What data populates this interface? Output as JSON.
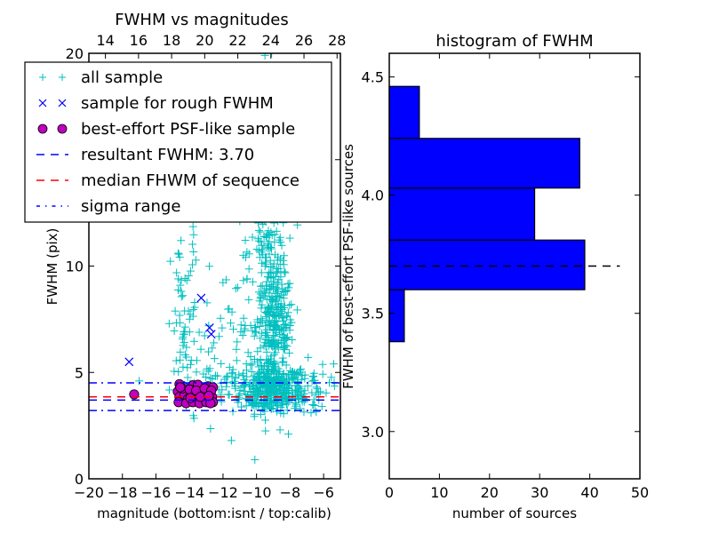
{
  "chart_data": [
    {
      "type": "scatter",
      "title": "FWHM vs magnitudes",
      "xlabel": "magnitude (bottom:isnt / top:calib)",
      "ylabel": "FWHM (pix)",
      "xlim": [
        -20,
        -5
      ],
      "ylim": [
        0,
        20
      ],
      "x_ticks": [
        -20,
        -18,
        -16,
        -14,
        -12,
        -10,
        -8,
        -6
      ],
      "x_tick_labels": [
        "−20",
        "−18",
        "−16",
        "−14",
        "−12",
        "−10",
        "−8",
        "−6"
      ],
      "y_ticks": [
        0,
        5,
        10,
        15,
        20
      ],
      "y_tick_labels": [
        "0",
        "5",
        "10",
        "15",
        "20"
      ],
      "top_xlim": [
        13.0,
        28.2
      ],
      "top_x_ticks": [
        14,
        16,
        18,
        20,
        22,
        24,
        26,
        28
      ],
      "top_x_tick_labels": [
        "14",
        "16",
        "18",
        "20",
        "22",
        "24",
        "26",
        "28"
      ],
      "legend": {
        "placement": "upper-left",
        "entries": [
          {
            "label": "all sample",
            "marker": "plus",
            "color": "#00bfbf"
          },
          {
            "label": "sample for rough FWHM",
            "marker": "x",
            "color": "#0000ff"
          },
          {
            "label": "best-effort PSF-like sample",
            "marker": "circle",
            "color": "#bf00bf"
          },
          {
            "label": "resultant FWHM: 3.70",
            "line": "dashed",
            "color": "#0000ff"
          },
          {
            "label": "median FHWM of sequence",
            "line": "dashed",
            "color": "#ff0000"
          },
          {
            "label": "sigma range",
            "line": "dashdot",
            "color": "#0000ff"
          }
        ]
      },
      "series": [
        {
          "name": "all sample",
          "marker": "plus",
          "color": "#00bfbf",
          "clusters": [
            {
              "x_mean": -9.2,
              "x_sd": 0.9,
              "y_mean": 4.2,
              "y_sd": 0.55,
              "count": 260
            },
            {
              "x_mean": -8.9,
              "x_sd": 0.55,
              "y_mean": 7.0,
              "y_sd": 1.4,
              "count": 260
            },
            {
              "x_mean": -9.3,
              "x_sd": 0.55,
              "y_mean": 10.5,
              "y_sd": 1.8,
              "count": 110
            },
            {
              "x_mean": -9.8,
              "x_sd": 0.7,
              "y_mean": 14.5,
              "y_sd": 2.5,
              "count": 60
            },
            {
              "x_mean": -7.5,
              "x_sd": 0.9,
              "y_mean": 4.3,
              "y_sd": 0.6,
              "count": 80
            },
            {
              "x_mean": -11.0,
              "x_sd": 0.9,
              "y_mean": 4.5,
              "y_sd": 0.6,
              "count": 60
            },
            {
              "x_mean": -11.0,
              "x_sd": 0.9,
              "y_mean": 7.5,
              "y_sd": 1.8,
              "count": 35
            },
            {
              "x_mean": -14.2,
              "x_sd": 0.45,
              "y_mean": 7.0,
              "y_sd": 2.2,
              "count": 55
            },
            {
              "x_mean": -13.2,
              "x_sd": 0.9,
              "y_mean": 5.5,
              "y_sd": 1.2,
              "count": 30
            },
            {
              "x_mean": -14.0,
              "x_sd": 0.5,
              "y_mean": 13.5,
              "y_sd": 2.0,
              "count": 20
            }
          ],
          "points": [
            {
              "x": -17.0,
              "y": 4.6
            },
            {
              "x": -11.5,
              "y": 1.8
            },
            {
              "x": -8.6,
              "y": 2.3
            },
            {
              "x": -8.1,
              "y": 2.1
            },
            {
              "x": -7.4,
              "y": 3.3
            },
            {
              "x": -6.1,
              "y": 3.4
            },
            {
              "x": -5.4,
              "y": 5.4
            },
            {
              "x": -9.5,
              "y": 19.9
            },
            {
              "x": -9.1,
              "y": 20.0
            },
            {
              "x": -10.1,
              "y": 0.9
            }
          ]
        },
        {
          "name": "sample for rough FWHM",
          "marker": "x",
          "color": "#0000ff",
          "points": [
            {
              "x": -17.6,
              "y": 5.5
            },
            {
              "x": -13.3,
              "y": 8.5
            },
            {
              "x": -12.8,
              "y": 7.1
            },
            {
              "x": -12.7,
              "y": 6.8
            },
            {
              "x": -14.1,
              "y": 4.4
            },
            {
              "x": -13.6,
              "y": 4.1
            }
          ]
        },
        {
          "name": "best-effort PSF-like sample",
          "marker": "circle",
          "color": "#bf00bf",
          "points": [
            {
              "x": -17.3,
              "y": 3.97
            },
            {
              "x": -14.6,
              "y": 4.45
            },
            {
              "x": -13.8,
              "y": 4.4
            },
            {
              "x": -13.5,
              "y": 4.42
            },
            {
              "x": -12.9,
              "y": 4.35
            },
            {
              "x": -12.6,
              "y": 4.3
            },
            {
              "x": -14.7,
              "y": 4.1
            },
            {
              "x": -14.5,
              "y": 3.7
            },
            {
              "x": -14.6,
              "y": 3.85
            },
            {
              "x": -14.3,
              "y": 3.95
            },
            {
              "x": -14.1,
              "y": 3.75
            },
            {
              "x": -13.9,
              "y": 4.05
            },
            {
              "x": -13.7,
              "y": 3.9
            },
            {
              "x": -13.5,
              "y": 3.65
            },
            {
              "x": -13.3,
              "y": 4.1
            },
            {
              "x": -13.2,
              "y": 3.8
            },
            {
              "x": -13.0,
              "y": 3.95
            },
            {
              "x": -12.9,
              "y": 3.7
            },
            {
              "x": -12.8,
              "y": 4.1
            },
            {
              "x": -12.65,
              "y": 3.85
            },
            {
              "x": -12.6,
              "y": 3.6
            },
            {
              "x": -14.4,
              "y": 4.25
            },
            {
              "x": -14.0,
              "y": 4.2
            },
            {
              "x": -13.6,
              "y": 4.15
            },
            {
              "x": -13.1,
              "y": 4.25
            },
            {
              "x": -12.7,
              "y": 4.15
            },
            {
              "x": -14.65,
              "y": 3.6
            },
            {
              "x": -14.2,
              "y": 3.55
            },
            {
              "x": -13.8,
              "y": 3.6
            },
            {
              "x": -13.4,
              "y": 3.55
            },
            {
              "x": -13.0,
              "y": 3.6
            },
            {
              "x": -12.75,
              "y": 3.55
            },
            {
              "x": -14.55,
              "y": 4.3
            },
            {
              "x": -13.95,
              "y": 3.8
            },
            {
              "x": -13.35,
              "y": 3.85
            },
            {
              "x": -12.85,
              "y": 3.9
            }
          ]
        }
      ],
      "hlines": [
        {
          "name": "resultant FWHM",
          "y": 3.7,
          "style": "dashed",
          "color": "#0000ff"
        },
        {
          "name": "median FHWM of sequence",
          "y": 3.85,
          "style": "dashed",
          "color": "#ff0000"
        },
        {
          "name": "sigma range upper",
          "y": 4.51,
          "style": "dashdot",
          "color": "#0000ff"
        },
        {
          "name": "sigma range lower",
          "y": 3.21,
          "style": "dashdot",
          "color": "#0000ff"
        }
      ]
    },
    {
      "type": "bar",
      "orientation": "horizontal",
      "title": "histogram of FWHM",
      "xlabel": "number of sources",
      "ylabel": "FWHM of best-effort PSF-like sources",
      "xlim": [
        0,
        50
      ],
      "ylim": [
        2.8,
        4.6
      ],
      "x_ticks": [
        0,
        10,
        20,
        30,
        40,
        50
      ],
      "x_tick_labels": [
        "0",
        "10",
        "20",
        "30",
        "40",
        "50"
      ],
      "y_ticks": [
        3.0,
        3.5,
        4.0,
        4.5
      ],
      "y_tick_labels": [
        "3.0",
        "3.5",
        "4.0",
        "4.5"
      ],
      "bin_edges": [
        3.38,
        3.6,
        3.81,
        4.03,
        4.24,
        4.46
      ],
      "values": [
        3,
        39,
        29,
        38,
        6
      ],
      "bar_color": "#0000ff",
      "reference_line": {
        "y": 3.7,
        "style": "dashed",
        "color": "#000000",
        "x_extent": [
          0,
          46
        ]
      }
    }
  ]
}
